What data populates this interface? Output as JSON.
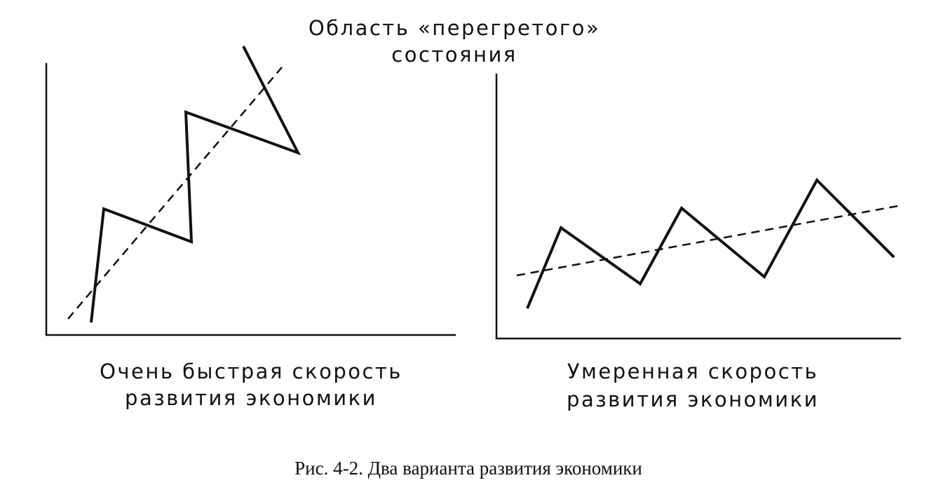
{
  "annotation": {
    "lines": [
      "Область «перегретого»",
      "состояния"
    ]
  },
  "panels": [
    {
      "label": {
        "lines": [
          "Очень быстрая скорость",
          "развития экономики"
        ]
      }
    },
    {
      "label": {
        "lines": [
          "Умеренная скорость",
          "развития экономики"
        ]
      }
    }
  ],
  "caption": "Рис. 4-2. Два варианта развития экономики"
}
